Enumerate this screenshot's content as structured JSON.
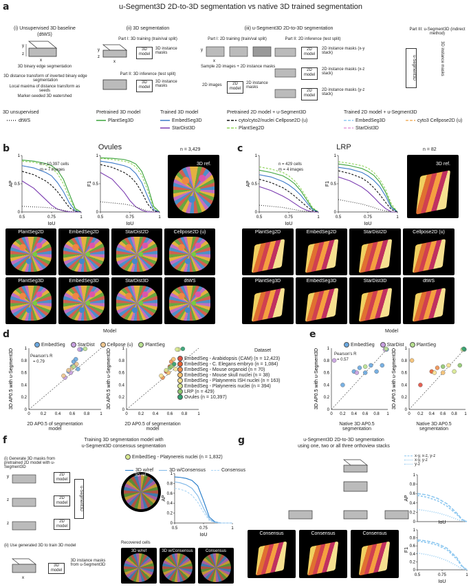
{
  "panel_a": {
    "label": "a",
    "title": "u-Segment3D 2D-to-3D segmentation vs native 3D trained segmentation",
    "col1": {
      "title": "(i) Unsupervised 3D baseline",
      "subtitle": "(dtWS)",
      "steps": [
        "3D binary edge segmentation",
        "3D distance transform of inverted binary edge segmentation",
        "Local maxima of distance transform as seeds",
        "Marker-seeded 3D watershed"
      ]
    },
    "col2": {
      "title": "(ii) 3D segmentation",
      "part1": "Part I: 3D training (train/val split)",
      "part2": "Part II: 3D inference (test split)",
      "model": "3D model",
      "output": "3D instance masks"
    },
    "col3": {
      "title": "(iii) u-Segment3D 2D-to-3D segmentation",
      "part1": "Part I: 2D training (train/val split)",
      "part2": "Part II: 2D inference (test split)",
      "part3": "Part III: u-Segment3D (indirect method)",
      "sample": "Sample 2D images + 2D instance masks",
      "images2d": "2D images",
      "model2d": "2D model",
      "instance_masks": "2D instance masks",
      "masks_xy": "2D instance masks (x-y stack)",
      "masks_xz": "2D instance masks (x-z stack)",
      "masks_yz": "2D instance masks (y-z stack)",
      "useg": "u-Segment3D",
      "out3d": "3D instance masks"
    },
    "axes": {
      "x": "x",
      "y": "y",
      "z": "z"
    },
    "legend": {
      "groups": [
        "3D unsupervised",
        "Pretrained 3D model",
        "Trained 3D model",
        "Pretrained 2D model + u-Segment3D",
        "Trained 2D model + u-Segment3D"
      ],
      "items": [
        {
          "label": "dtWS",
          "color": "#333333",
          "dash": "1,2"
        },
        {
          "label": "PlantSeg3D",
          "color": "#3aa23a",
          "dash": ""
        },
        {
          "label": "EmbedSeg3D",
          "color": "#3a78c8",
          "dash": ""
        },
        {
          "label": "StarDist3D",
          "color": "#7a3ab0",
          "dash": ""
        },
        {
          "label": "cyto/cyto2/nuclei Cellpose2D (u)",
          "color": "#111111",
          "dash": "4,2"
        },
        {
          "label": "PlantSeg2D",
          "color": "#8fd45a",
          "dash": "4,2"
        },
        {
          "label": "EmbedSeg3D",
          "color": "#8ec8f0",
          "dash": "4,2"
        },
        {
          "label": "StarDist3D",
          "color": "#e49ad8",
          "dash": "4,2"
        },
        {
          "label": "cyto3 Cellpose2D (u)",
          "color": "#f0b060",
          "dash": "4,2"
        }
      ]
    }
  },
  "panel_b": {
    "label": "b",
    "title": "Ovules",
    "n_cells": "n = 10,397 cells",
    "m_images": "m = 7 images",
    "ref_n": "n = 3,429",
    "ref_label": "3D ref.",
    "ylabel_ap": "AP",
    "ylabel_f1": "F1",
    "xlabel": "IoU",
    "row1": [
      "PlantSeg2D",
      "EmbedSeg2D",
      "StarDist2D",
      "Cellpose2D (u)"
    ],
    "row2": [
      "PlantSeg3D",
      "EmbedSeg3D",
      "StarDist3D",
      "dtWS"
    ]
  },
  "panel_c": {
    "label": "c",
    "title": "LRP",
    "n_cells": "n = 429 cells",
    "m_images": "m = 4 images",
    "ref_n": "n = 82",
    "ref_label": "3D ref.",
    "ylabel_ap": "AP",
    "ylabel_f1": "F1",
    "xlabel": "IoU",
    "row1": [
      "PlantSeg2D",
      "EmbedSeg2D",
      "StarDist2D",
      "Cellpose2D (u)"
    ],
    "row2": [
      "PlantSeg3D",
      "EmbedSeg3D",
      "StarDist3D",
      "dtWS"
    ]
  },
  "panel_d": {
    "label": "d",
    "model_title": "Model",
    "models": [
      {
        "label": "EmbedSeg",
        "color": "#6aa8e0"
      },
      {
        "label": "StarDist",
        "color": "#c8a0e0"
      },
      {
        "label": "Cellpose (u)",
        "color": "#f0c890"
      },
      {
        "label": "PlantSeg",
        "color": "#b8e090"
      }
    ],
    "pearson": "Pearson's R",
    "pearson_val": "= 0.79",
    "ylabel": "3D AP0.5 with u-Segment3D",
    "xlabel": "2D AP0.5 of segmentation model",
    "dataset_title": "Dataset",
    "datasets": [
      {
        "label": "EmbedSeg - Arabidopsis (CAM) (n = 12,423)",
        "color": "#e05040"
      },
      {
        "label": "EmbedSeg - C. Elegans embryo (n = 1,084)",
        "color": "#e86030"
      },
      {
        "label": "EmbedSeg - Mouse organoid (n = 70)",
        "color": "#f09050"
      },
      {
        "label": "EmbedSeg - Mouse skull nuclei (n = 38)",
        "color": "#f5c070"
      },
      {
        "label": "EmbedSeg - Platynereis ISH nuclei (n = 163)",
        "color": "#f8e090"
      },
      {
        "label": "EmbedSeg - Platynereis nuclei (n = 394)",
        "color": "#d8e890"
      },
      {
        "label": "LRP (n = 429)",
        "color": "#90c870"
      },
      {
        "label": "Ovules (n = 10,397)",
        "color": "#30a070"
      }
    ]
  },
  "panel_e": {
    "label": "e",
    "model_title": "Model",
    "models": [
      {
        "label": "EmbedSeg",
        "color": "#6aa8e0"
      },
      {
        "label": "StarDist",
        "color": "#c8a0e0"
      },
      {
        "label": "PlantSeg",
        "color": "#b8e090"
      }
    ],
    "pearson": "Pearson's R",
    "pearson_val": "= 0.57",
    "ylabel": "3D AP0.5 with u-Segment3D",
    "xlabel": "Native 3D AP0.5 segmentation"
  },
  "panel_f": {
    "label": "f",
    "title1": "Training 3D segmentation model with",
    "title2": "u-Segment3D consensus segmentation",
    "step1": "(i) Generate 3D masks from pretrained 2D model with u-Segment3D",
    "step2": "(ii) Use generated 3D to train 3D model",
    "model2d": "2D model",
    "model3d": "3D model",
    "useg": "u-Segment3D",
    "out": "3D instance masks from u-Segment3D",
    "dataset": "EmbedSeg - Platynereis nuclei (n = 1,832)",
    "legend": [
      "3D w/ref",
      "3D w/Consensus",
      "Consensus"
    ],
    "ref_label": "3D ref.",
    "recovered": "Recovered cells",
    "thumbs": [
      "3D w/ref",
      "3D w/Consensus",
      "Consensus"
    ],
    "ylabel": "AP",
    "xlabel": "IoU"
  },
  "panel_g": {
    "label": "g",
    "title1": "u-Segment3D 2D-to-3D segmentation",
    "title2": "using one, two or all three orthoview stacks",
    "legend": [
      "x-y, x-z, y-z",
      "x-y, y-z",
      "y-z"
    ],
    "thumbs": [
      "Consensus",
      "Consensus",
      "Consensus"
    ],
    "ylabel_ap": "AP",
    "ylabel_f1": "F1",
    "xlabel": "IoU"
  },
  "chart_data": [
    {
      "type": "line",
      "title": "Ovules AP",
      "xlabel": "IoU",
      "ylabel": "AP",
      "xlim": [
        0.5,
        1.0
      ],
      "ylim": [
        0,
        1
      ],
      "x": [
        0.5,
        0.6,
        0.7,
        0.75,
        0.8,
        0.85,
        0.9,
        0.95,
        1.0
      ],
      "series": [
        {
          "name": "PlantSeg3D",
          "values": [
            0.92,
            0.9,
            0.86,
            0.82,
            0.74,
            0.58,
            0.32,
            0.06,
            0.0
          ]
        },
        {
          "name": "PlantSeg2D",
          "values": [
            0.9,
            0.88,
            0.83,
            0.78,
            0.68,
            0.5,
            0.25,
            0.04,
            0.0
          ]
        },
        {
          "name": "EmbedSeg3D",
          "values": [
            0.82,
            0.78,
            0.7,
            0.64,
            0.52,
            0.36,
            0.16,
            0.02,
            0.0
          ]
        },
        {
          "name": "cyto/cyto2/nuclei Cellpose2D (u)",
          "values": [
            0.72,
            0.66,
            0.55,
            0.47,
            0.36,
            0.22,
            0.08,
            0.01,
            0.0
          ]
        },
        {
          "name": "StarDist3D",
          "values": [
            0.55,
            0.42,
            0.22,
            0.12,
            0.05,
            0.02,
            0.0,
            0.0,
            0.0
          ]
        },
        {
          "name": "dtWS",
          "values": [
            0.1,
            0.09,
            0.08,
            0.07,
            0.05,
            0.03,
            0.01,
            0.0,
            0.0
          ]
        }
      ]
    },
    {
      "type": "line",
      "title": "Ovules F1",
      "xlabel": "IoU",
      "ylabel": "F1",
      "xlim": [
        0.5,
        1.0
      ],
      "ylim": [
        0,
        1
      ],
      "x": [
        0.5,
        0.6,
        0.7,
        0.75,
        0.8,
        0.85,
        0.9,
        0.95,
        1.0
      ],
      "series": [
        {
          "name": "PlantSeg3D",
          "values": [
            0.96,
            0.95,
            0.93,
            0.9,
            0.85,
            0.72,
            0.46,
            0.1,
            0.0
          ]
        },
        {
          "name": "PlantSeg2D",
          "values": [
            0.95,
            0.93,
            0.9,
            0.87,
            0.8,
            0.65,
            0.38,
            0.07,
            0.0
          ]
        },
        {
          "name": "EmbedSeg3D",
          "values": [
            0.9,
            0.87,
            0.82,
            0.78,
            0.68,
            0.52,
            0.27,
            0.04,
            0.0
          ]
        },
        {
          "name": "cyto/cyto2/nuclei Cellpose2D (u)",
          "values": [
            0.84,
            0.79,
            0.7,
            0.63,
            0.52,
            0.35,
            0.14,
            0.02,
            0.0
          ]
        },
        {
          "name": "StarDist3D",
          "values": [
            0.7,
            0.58,
            0.35,
            0.2,
            0.09,
            0.03,
            0.0,
            0.0,
            0.0
          ]
        },
        {
          "name": "dtWS",
          "values": [
            0.18,
            0.16,
            0.14,
            0.12,
            0.09,
            0.05,
            0.02,
            0.0,
            0.0
          ]
        }
      ]
    },
    {
      "type": "line",
      "title": "LRP AP",
      "xlabel": "IoU",
      "ylabel": "AP",
      "xlim": [
        0.5,
        1.0
      ],
      "ylim": [
        0,
        1
      ],
      "x": [
        0.5,
        0.6,
        0.7,
        0.75,
        0.8,
        0.85,
        0.9,
        0.95,
        1.0
      ],
      "series": [
        {
          "name": "PlantSeg2D",
          "values": [
            0.8,
            0.76,
            0.7,
            0.64,
            0.55,
            0.42,
            0.26,
            0.08,
            0.0
          ]
        },
        {
          "name": "PlantSeg3D",
          "values": [
            0.74,
            0.7,
            0.64,
            0.58,
            0.5,
            0.38,
            0.22,
            0.06,
            0.0
          ]
        },
        {
          "name": "EmbedSeg3D",
          "values": [
            0.66,
            0.62,
            0.54,
            0.48,
            0.4,
            0.3,
            0.17,
            0.04,
            0.0
          ]
        },
        {
          "name": "cyto/cyto2/nuclei Cellpose2D (u)",
          "values": [
            0.58,
            0.52,
            0.43,
            0.36,
            0.28,
            0.19,
            0.1,
            0.02,
            0.0
          ]
        },
        {
          "name": "StarDist3D",
          "values": [
            0.45,
            0.38,
            0.28,
            0.22,
            0.15,
            0.08,
            0.03,
            0.0,
            0.0
          ]
        },
        {
          "name": "dtWS",
          "values": [
            0.12,
            0.1,
            0.08,
            0.06,
            0.04,
            0.02,
            0.01,
            0.0,
            0.0
          ]
        }
      ]
    },
    {
      "type": "line",
      "title": "LRP F1",
      "xlabel": "IoU",
      "ylabel": "F1",
      "xlim": [
        0.5,
        1.0
      ],
      "ylim": [
        0,
        1
      ],
      "x": [
        0.5,
        0.6,
        0.7,
        0.75,
        0.8,
        0.85,
        0.9,
        0.95,
        1.0
      ],
      "series": [
        {
          "name": "PlantSeg2D",
          "values": [
            0.89,
            0.86,
            0.82,
            0.78,
            0.7,
            0.58,
            0.4,
            0.14,
            0.0
          ]
        },
        {
          "name": "PlantSeg3D",
          "values": [
            0.85,
            0.82,
            0.77,
            0.72,
            0.65,
            0.53,
            0.35,
            0.1,
            0.0
          ]
        },
        {
          "name": "EmbedSeg3D",
          "values": [
            0.79,
            0.76,
            0.7,
            0.64,
            0.56,
            0.45,
            0.28,
            0.07,
            0.0
          ]
        },
        {
          "name": "cyto/cyto2/nuclei Cellpose2D (u)",
          "values": [
            0.73,
            0.68,
            0.6,
            0.53,
            0.43,
            0.31,
            0.17,
            0.04,
            0.0
          ]
        },
        {
          "name": "StarDist3D",
          "values": [
            0.62,
            0.55,
            0.44,
            0.36,
            0.26,
            0.15,
            0.06,
            0.0,
            0.0
          ]
        },
        {
          "name": "dtWS",
          "values": [
            0.22,
            0.18,
            0.14,
            0.11,
            0.08,
            0.04,
            0.02,
            0.0,
            0.0
          ]
        }
      ]
    },
    {
      "type": "scatter",
      "title": "",
      "xlabel": "2D AP0.5 of segmentation model",
      "ylabel": "3D AP0.5 with u-Segment3D",
      "xlim": [
        0,
        1
      ],
      "ylim": [
        0,
        1
      ],
      "series": [
        {
          "name": "EmbedSeg",
          "x": [
            0.55,
            0.6,
            0.62,
            0.65,
            0.68,
            0.72
          ],
          "y": [
            0.62,
            0.7,
            0.78,
            0.82,
            0.66,
            0.98
          ]
        },
        {
          "name": "StarDist",
          "x": [
            0.5,
            0.58,
            0.64,
            0.7
          ],
          "y": [
            0.52,
            0.6,
            0.72,
            0.98
          ]
        },
        {
          "name": "Cellpose (u)",
          "x": [
            0.48,
            0.55,
            0.6,
            0.66
          ],
          "y": [
            0.55,
            0.64,
            0.68,
            0.74
          ]
        },
        {
          "name": "PlantSeg",
          "x": [
            0.62,
            0.78
          ],
          "y": [
            0.7,
            0.99
          ]
        }
      ]
    },
    {
      "type": "scatter",
      "title": "",
      "xlabel": "Native 3D AP0.5 segmentation",
      "ylabel": "3D AP0.5 with u-Segment3D",
      "xlim": [
        0,
        1
      ],
      "ylim": [
        0,
        1
      ],
      "series": [
        {
          "name": "EmbedSeg",
          "x": [
            0.2,
            0.4,
            0.5,
            0.6,
            0.7,
            0.8,
            0.9,
            0.98
          ],
          "y": [
            0.4,
            0.62,
            0.68,
            0.6,
            0.72,
            0.62,
            0.72,
            0.98
          ]
        },
        {
          "name": "StarDist",
          "x": [
            0.05,
            0.45,
            0.95
          ],
          "y": [
            0.8,
            0.6,
            0.98
          ]
        },
        {
          "name": "PlantSeg",
          "x": [
            0.6,
            0.97
          ],
          "y": [
            0.7,
            0.99
          ]
        }
      ]
    },
    {
      "type": "line",
      "title": "",
      "xlabel": "IoU",
      "ylabel": "AP",
      "xlim": [
        0.5,
        1.0
      ],
      "ylim": [
        0,
        1
      ],
      "x": [
        0.5,
        0.55,
        0.6,
        0.65,
        0.7,
        0.75,
        0.8,
        0.85,
        0.9,
        0.95,
        1.0
      ],
      "series": [
        {
          "name": "3D w/ref",
          "values": [
            0.93,
            0.92,
            0.9,
            0.86,
            0.75,
            0.45,
            0.12,
            0.02,
            0.0,
            0.0,
            0.0
          ]
        },
        {
          "name": "3D w/Consensus",
          "values": [
            0.83,
            0.81,
            0.77,
            0.7,
            0.55,
            0.3,
            0.08,
            0.01,
            0.0,
            0.0,
            0.0
          ]
        },
        {
          "name": "Consensus",
          "values": [
            0.7,
            0.68,
            0.64,
            0.56,
            0.42,
            0.22,
            0.05,
            0.01,
            0.0,
            0.0,
            0.0
          ]
        }
      ]
    },
    {
      "type": "line",
      "title": "",
      "xlabel": "IoU",
      "ylabel": "AP",
      "xlim": [
        0.5,
        1.0
      ],
      "ylim": [
        0,
        1
      ],
      "x": [
        0.5,
        0.6,
        0.7,
        0.8,
        0.9,
        0.95,
        1.0
      ],
      "series": [
        {
          "name": "x-y, x-z, y-z",
          "values": [
            0.6,
            0.57,
            0.5,
            0.38,
            0.18,
            0.05,
            0.0
          ]
        },
        {
          "name": "x-y, y-z",
          "values": [
            0.56,
            0.52,
            0.45,
            0.33,
            0.15,
            0.04,
            0.0
          ]
        },
        {
          "name": "y-z",
          "values": [
            0.26,
            0.23,
            0.19,
            0.13,
            0.05,
            0.01,
            0.0
          ]
        }
      ]
    },
    {
      "type": "line",
      "title": "",
      "xlabel": "IoU",
      "ylabel": "F1",
      "xlim": [
        0.5,
        1.0
      ],
      "ylim": [
        0,
        1
      ],
      "x": [
        0.5,
        0.6,
        0.7,
        0.8,
        0.9,
        0.95,
        1.0
      ],
      "series": [
        {
          "name": "x-y, x-z, y-z",
          "values": [
            0.75,
            0.72,
            0.66,
            0.54,
            0.3,
            0.1,
            0.0
          ]
        },
        {
          "name": "x-y, y-z",
          "values": [
            0.72,
            0.68,
            0.62,
            0.5,
            0.26,
            0.08,
            0.0
          ]
        },
        {
          "name": "y-z",
          "values": [
            0.42,
            0.38,
            0.32,
            0.23,
            0.1,
            0.02,
            0.0
          ]
        }
      ]
    }
  ]
}
